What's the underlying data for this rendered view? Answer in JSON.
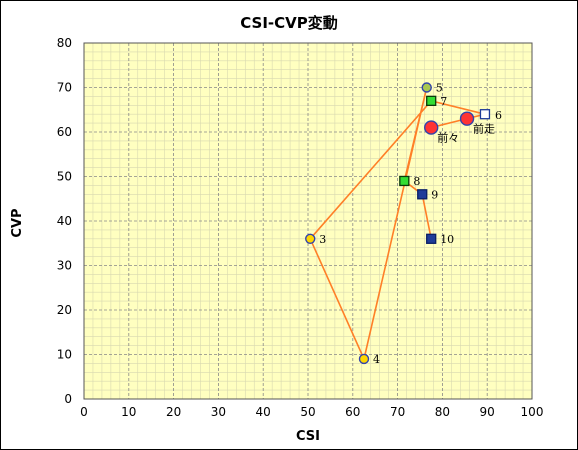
{
  "chart_data": {
    "type": "scatter",
    "title": "CSI-CVP変動",
    "xlabel": "CSI",
    "ylabel": "CVP",
    "xlim": [
      0,
      100
    ],
    "ylim": [
      0,
      80
    ],
    "xticks": [
      "0",
      "10",
      "20",
      "30",
      "40",
      "50",
      "60",
      "70",
      "80",
      "90",
      "100"
    ],
    "yticks": [
      "0",
      "10",
      "20",
      "30",
      "40",
      "50",
      "60",
      "70",
      "80"
    ],
    "grid": true,
    "colors": {
      "plot_background": "#ffffc0",
      "major_grid": "#888888",
      "minor_grid": "#d8d8b0",
      "line": "#ff7f27",
      "circle_fill": "#ffd700",
      "circle_stroke": "#3344aa",
      "square_fill": "#1f3c99",
      "green_fill": "#33dd33",
      "olive_fill": "#a8c850",
      "highlight_fill": "#ff3333",
      "hollow_fill": "#ffffff"
    },
    "points": [
      {
        "x": 77.5,
        "y": 61,
        "label": "前々",
        "marker": "circle-red-large"
      },
      {
        "x": 85.5,
        "y": 63,
        "label": "前走",
        "marker": "circle-red-large"
      },
      {
        "x": 50.5,
        "y": 36,
        "label": "3",
        "marker": "circle-gold"
      },
      {
        "x": 62.5,
        "y": 9,
        "label": "4",
        "marker": "circle-gold"
      },
      {
        "x": 76.5,
        "y": 70,
        "label": "5",
        "marker": "circle-olive"
      },
      {
        "x": 89.5,
        "y": 64,
        "label": "6",
        "marker": "square-hollow"
      },
      {
        "x": 77.5,
        "y": 67,
        "label": "7",
        "marker": "square-green"
      },
      {
        "x": 71.5,
        "y": 49,
        "label": "8",
        "marker": "square-green"
      },
      {
        "x": 75.5,
        "y": 46,
        "label": "9",
        "marker": "square-blue"
      },
      {
        "x": 77.5,
        "y": 36,
        "label": "10",
        "marker": "square-blue"
      }
    ],
    "line_path_labels": [
      "前々",
      "前走",
      "6",
      "7",
      "3",
      "4",
      "5",
      "8",
      "9",
      "10"
    ]
  }
}
